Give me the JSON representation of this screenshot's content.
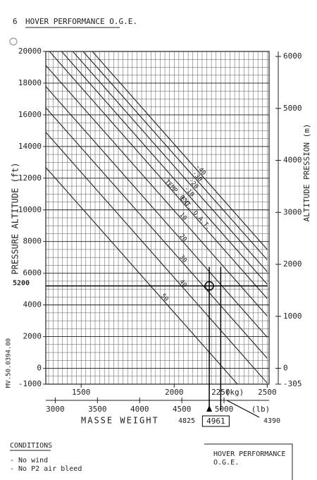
{
  "header": "6",
  "chart_data": {
    "type": "line",
    "title": "HOVER PERFORMANCE O.G.E.",
    "ylabel": "PRESSURE ALTITUDE (ft)",
    "y2label": "ALTITUDE PRESSION (m)",
    "xlabel": "MASSE  WEIGHT",
    "x_unit": "(kg)",
    "x2_unit": "(lb)",
    "annotation": "TEMP. EXT. O.A.T.",
    "doc_ref": "MV.50.0394.00",
    "xlim": [
      1310,
      2510
    ],
    "xticks": [
      1500,
      2000,
      2250,
      2500
    ],
    "x2lim": [
      2888,
      5534
    ],
    "x2ticks": [
      3000,
      3500,
      4000,
      4500,
      5000
    ],
    "ylim": [
      -1000,
      20000
    ],
    "yticks": [
      -1000,
      0,
      2000,
      4000,
      6000,
      8000,
      10000,
      12000,
      14000,
      16000,
      18000,
      20000
    ],
    "y2lim": [
      -305,
      6096
    ],
    "y2ticks": [
      -305,
      0,
      1000,
      2000,
      3000,
      4000,
      5000,
      6000
    ],
    "grid": true,
    "x_minor_step": 25,
    "y_minor_step": 500,
    "marked_altitude": 5200,
    "marked_weights_lb": [
      4825,
      4961
    ],
    "hand_note": 4390,
    "series": [
      {
        "name": "-40",
        "color": "#222",
        "x": [
          1560,
          2500
        ],
        "values": [
          20000,
          7500
        ]
      },
      {
        "name": "-30",
        "color": "#222",
        "x": [
          1510,
          2500
        ],
        "values": [
          20000,
          6850
        ]
      },
      {
        "name": "-20",
        "color": "#222",
        "x": [
          1455,
          2500
        ],
        "values": [
          20000,
          6100
        ]
      },
      {
        "name": "-10",
        "color": "#222",
        "x": [
          1395,
          2500
        ],
        "values": [
          20000,
          5300
        ]
      },
      {
        "name": "0°C",
        "color": "#222",
        "x": [
          1330,
          2500
        ],
        "values": [
          20000,
          4400
        ]
      },
      {
        "name": "10",
        "color": "#222",
        "x": [
          1310,
          2500
        ],
        "values": [
          19120,
          3300
        ]
      },
      {
        "name": "20",
        "color": "#222",
        "x": [
          1310,
          2500
        ],
        "values": [
          17790,
          1960
        ]
      },
      {
        "name": "30",
        "color": "#222",
        "x": [
          1310,
          2500
        ],
        "values": [
          16450,
          630
        ]
      },
      {
        "name": "40",
        "color": "#222",
        "x": [
          1310,
          2500
        ],
        "values": [
          14900,
          -930
        ]
      },
      {
        "name": "50",
        "color": "#222",
        "x": [
          1310,
          2340
        ],
        "values": [
          12680,
          -1000
        ]
      }
    ]
  },
  "conditions": {
    "title": "CONDITIONS",
    "items": [
      "- No wind",
      "- No P2 air bleed"
    ]
  },
  "footer_box": [
    "HOVER PERFORMANCE",
    "O.G.E."
  ]
}
